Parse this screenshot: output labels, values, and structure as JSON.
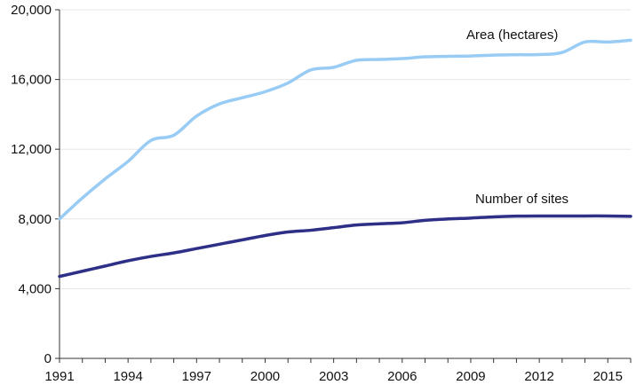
{
  "chart_data": {
    "type": "line",
    "title": "",
    "xlabel": "",
    "ylabel": "",
    "xlim": [
      1991,
      2016
    ],
    "ylim": [
      0,
      20000
    ],
    "x_ticks": [
      "1991",
      "1994",
      "1997",
      "2000",
      "2003",
      "2006",
      "2009",
      "2012",
      "2015"
    ],
    "y_ticks": [
      "0",
      "4,000",
      "8,000",
      "12,000",
      "16,000",
      "20,000"
    ],
    "grid": "horizontal",
    "legend": "none",
    "x": [
      1991,
      1992,
      1993,
      1994,
      1995,
      1996,
      1997,
      1998,
      1999,
      2000,
      2001,
      2002,
      2003,
      2004,
      2005,
      2006,
      2007,
      2008,
      2009,
      2010,
      2011,
      2012,
      2013,
      2014,
      2015,
      2016
    ],
    "series": [
      {
        "name": "Area (hectares)",
        "color": "#99CCF5",
        "values": [
          8000,
          9200,
          10300,
          11300,
          12500,
          12800,
          13900,
          14600,
          14950,
          15300,
          15800,
          16550,
          16700,
          17100,
          17150,
          17200,
          17300,
          17330,
          17350,
          17400,
          17420,
          17430,
          17550,
          18150,
          18150,
          18250
        ]
      },
      {
        "name": "Number of sites",
        "color": "#2E2F87",
        "values": [
          4700,
          5000,
          5300,
          5600,
          5850,
          6050,
          6300,
          6550,
          6800,
          7050,
          7250,
          7350,
          7500,
          7650,
          7720,
          7780,
          7920,
          8000,
          8050,
          8120,
          8160,
          8170,
          8170,
          8170,
          8170,
          8150
        ]
      }
    ]
  }
}
